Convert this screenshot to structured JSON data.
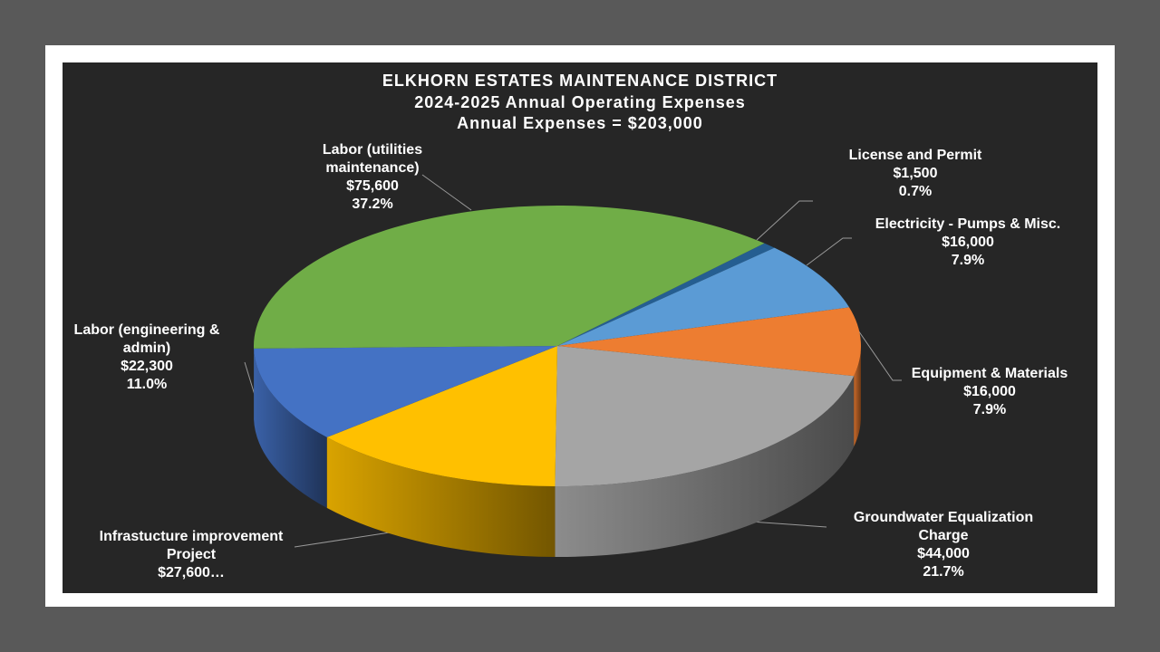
{
  "chart_data": {
    "type": "pie",
    "title": "ELKHORN ESTATES MAINTENANCE DISTRICT",
    "subtitle": "2024-2025 Annual Operating Expenses",
    "total_label": "Annual Expenses = $203,000",
    "categories": [
      "License and Permit",
      "Electricity - Pumps & Misc.",
      "Equipment & Materials",
      "Groundwater Equalization Charge",
      "Infrastucture improvement Project",
      "Labor (engineering & admin)",
      "Labor (utilities maintenance)"
    ],
    "values": [
      1500,
      16000,
      16000,
      44000,
      27600,
      22300,
      75600
    ],
    "value_labels": [
      "$1,500",
      "$16,000",
      "$16,000",
      "$44,000",
      "$27,600…",
      "$22,300",
      "$75,600"
    ],
    "percent_labels": [
      "0.7%",
      "7.9%",
      "7.9%",
      "21.7%",
      null,
      "11.0%",
      "37.2%"
    ],
    "colors": [
      "#255e91",
      "#5b9bd5",
      "#ed7d31",
      "#a5a5a5",
      "#ffc000",
      "#4472c4",
      "#70ad47"
    ]
  }
}
